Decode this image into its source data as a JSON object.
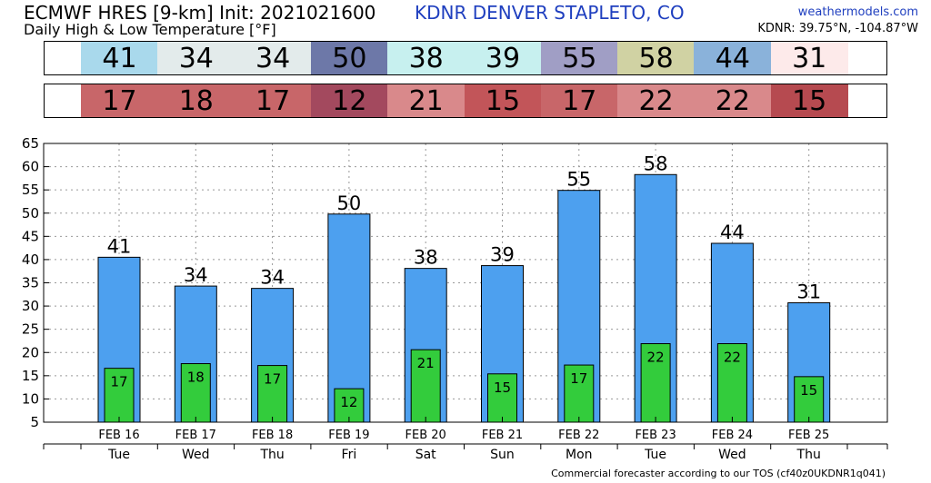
{
  "header": {
    "title": "ECMWF HRES [9-km] Init: 2021021600",
    "subtitle": "Daily High & Low Temperature [°F]",
    "station": "KDNR DENVER STAPLETO, CO",
    "brand": "weathermodels.com",
    "coords": "KDNR: 39.75°N, -104.87°W"
  },
  "footer": "Commercial forecaster according to our TOS (cf40z0UKDNR1q041)",
  "colors": {
    "high_bar": "#4da0ef",
    "low_bar": "#33cc3c",
    "high_strip": [
      "#a9d9ec",
      "#e3ebeb",
      "#e3ebeb",
      "#6d78a8",
      "#c7f0ef",
      "#c7f0ef",
      "#a09ec5",
      "#d0d2a3",
      "#8ab2da",
      "#fdeaea"
    ],
    "low_strip": [
      "#c86669",
      "#c86669",
      "#c86669",
      "#a3495e",
      "#d9898b",
      "#c25559",
      "#c86669",
      "#d9898b",
      "#d9898b",
      "#b64a50"
    ]
  },
  "chart_data": {
    "type": "bar",
    "categories": [
      "FEB 16",
      "FEB 17",
      "FEB 18",
      "FEB 19",
      "FEB 20",
      "FEB 21",
      "FEB 22",
      "FEB 23",
      "FEB 24",
      "FEB 25"
    ],
    "weekdays": [
      "Tue",
      "Wed",
      "Thu",
      "Fri",
      "Sat",
      "Sun",
      "Mon",
      "Tue",
      "Wed",
      "Thu"
    ],
    "series": [
      {
        "name": "High",
        "values": [
          41,
          34,
          34,
          50,
          38,
          39,
          55,
          58,
          44,
          31
        ],
        "plotted": [
          40.5,
          34.3,
          33.8,
          49.8,
          38.1,
          38.7,
          54.9,
          58.3,
          43.5,
          30.7
        ]
      },
      {
        "name": "Low",
        "values": [
          17,
          18,
          17,
          12,
          21,
          15,
          17,
          22,
          22,
          15
        ],
        "plotted": [
          16.6,
          17.6,
          17.2,
          12.2,
          20.6,
          15.4,
          17.3,
          21.9,
          21.9,
          14.8
        ]
      }
    ],
    "ylim": [
      5,
      65
    ],
    "yticks": [
      5,
      10,
      15,
      20,
      25,
      30,
      35,
      40,
      45,
      50,
      55,
      60,
      65
    ],
    "grid": true
  }
}
